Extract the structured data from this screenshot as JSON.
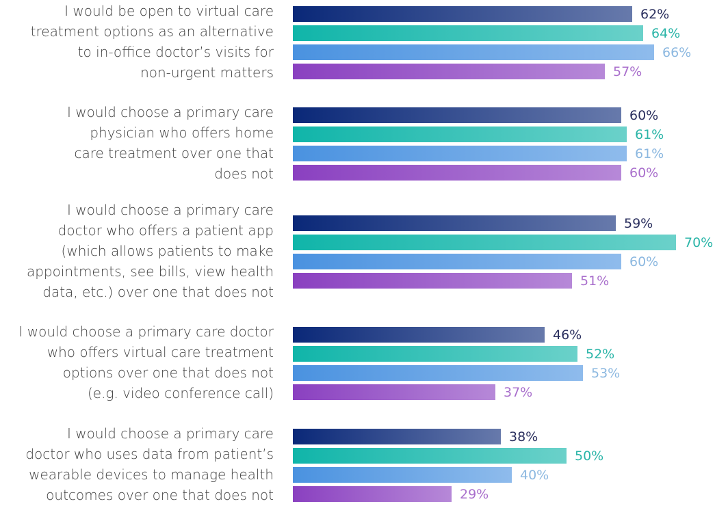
{
  "chart_data": {
    "type": "bar",
    "orientation": "horizontal",
    "categories": [
      [
        "I would be open to virtual care",
        "treatment options as an alternative",
        "to in-office doctor’s visits for",
        "non-urgent matters"
      ],
      [
        "I would choose a primary care",
        "physician who offers home",
        "care treatment over one that",
        "does not"
      ],
      [
        "I would choose a primary care",
        "doctor who offers a patient app",
        "(which allows patients to make",
        "appointments, see bills, view health",
        "data, etc.) over one that does not"
      ],
      [
        "I would choose a primary care doctor",
        "who offers virtual care treatment",
        "options over one that does not",
        "(e.g. video conference call)"
      ],
      [
        "I would choose a primary care",
        "doctor who uses data from patient’s",
        "wearable devices to manage health",
        "outcomes over one that does not"
      ]
    ],
    "series": [
      {
        "color": "#0a2878",
        "label_color": "#2a2f5e",
        "values": [
          62,
          60,
          59,
          46,
          38
        ],
        "value_labels": [
          "62%",
          "60%",
          "59%",
          "46%",
          "38%"
        ]
      },
      {
        "color": "#10b5a9",
        "label_color": "#2bb5a8",
        "values": [
          64,
          61,
          70,
          52,
          50
        ],
        "value_labels": [
          "64%",
          "61%",
          "70%",
          "52%",
          "50%"
        ]
      },
      {
        "color": "#4a92e0",
        "label_color": "#8cb8e0",
        "values": [
          66,
          61,
          60,
          53,
          40
        ],
        "value_labels": [
          "66%",
          "61%",
          "60%",
          "53%",
          "40%"
        ]
      },
      {
        "color": "#8a40c0",
        "label_color": "#a96fcc",
        "values": [
          57,
          60,
          51,
          37,
          29
        ],
        "value_labels": [
          "57%",
          "60%",
          "51%",
          "37%",
          "29%"
        ]
      }
    ]
  }
}
